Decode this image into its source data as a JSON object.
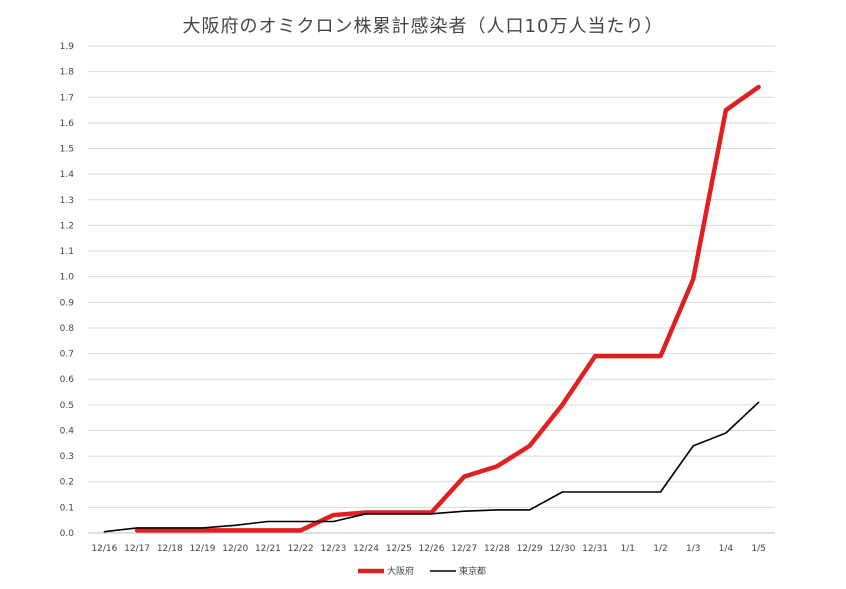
{
  "chart_data": {
    "type": "line",
    "title": "大阪府のオミクロン株累計感染者（人口10万人当たり）",
    "xlabel": "",
    "ylabel": "",
    "categories": [
      "12/16",
      "12/17",
      "12/18",
      "12/19",
      "12/20",
      "12/21",
      "12/22",
      "12/23",
      "12/24",
      "12/25",
      "12/26",
      "12/27",
      "12/28",
      "12/29",
      "12/30",
      "12/31",
      "1/1",
      "1/2",
      "1/3",
      "1/4",
      "1/5"
    ],
    "yticks": [
      "0.0",
      "0.1",
      "0.2",
      "0.3",
      "0.4",
      "0.5",
      "0.6",
      "0.7",
      "0.8",
      "0.9",
      "1.0",
      "1.1",
      "1.2",
      "1.3",
      "1.4",
      "1.5",
      "1.6",
      "1.7",
      "1.8",
      "1.9"
    ],
    "ylim": [
      0,
      1.9
    ],
    "grid": true,
    "legend_position": "bottom",
    "series": [
      {
        "name": "大阪府",
        "color": "#e02020",
        "values": [
          null,
          0.01,
          0.01,
          0.01,
          0.01,
          0.01,
          0.01,
          0.07,
          0.08,
          0.08,
          0.08,
          0.22,
          0.26,
          0.34,
          0.5,
          0.69,
          0.69,
          0.69,
          0.99,
          1.65,
          1.74
        ]
      },
      {
        "name": "東京都",
        "color": "#000000",
        "values": [
          0.005,
          0.02,
          0.02,
          0.02,
          0.03,
          0.045,
          0.045,
          0.045,
          0.075,
          0.075,
          0.075,
          0.085,
          0.09,
          0.09,
          0.16,
          0.16,
          0.16,
          0.16,
          0.34,
          0.39,
          0.51
        ]
      }
    ]
  }
}
